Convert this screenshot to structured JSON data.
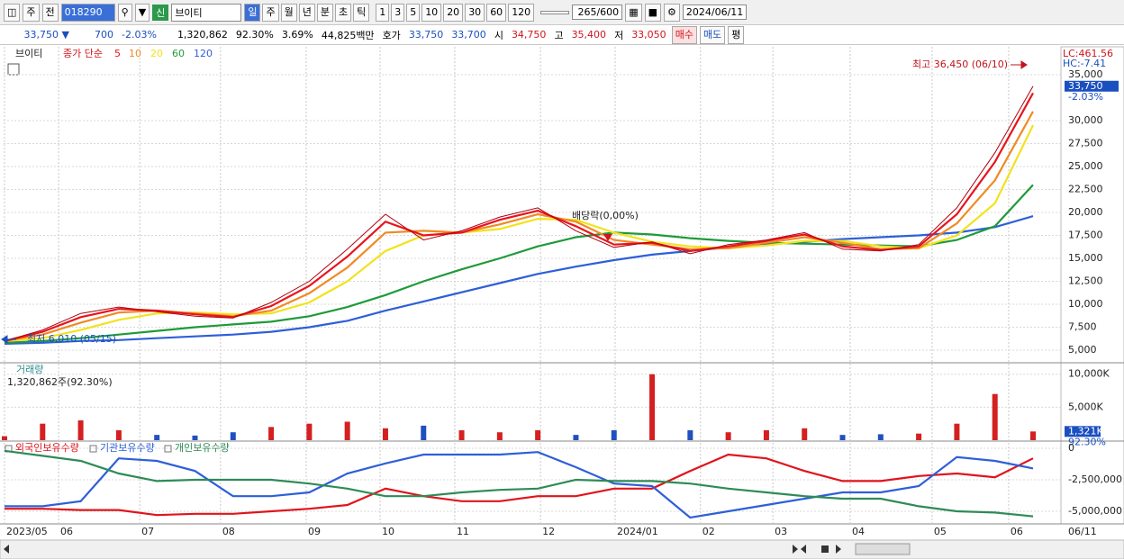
{
  "toolbar": {
    "market": "주",
    "prefix": "전",
    "code": "018290",
    "badge": "신",
    "name": "브이티",
    "periods": [
      "일",
      "주",
      "월",
      "년",
      "분",
      "초",
      "틱"
    ],
    "intervals": [
      "1",
      "3",
      "5",
      "10",
      "20",
      "30",
      "60",
      "120"
    ],
    "count": "265/600",
    "date": "2024/06/11"
  },
  "quote": {
    "price": "33,750 ▼",
    "change": "700",
    "change_pct": "-2.03%",
    "volume": "1,320,862",
    "volume_pct": "92.30%",
    "turnover": "3.69%",
    "amount": "44,825백만",
    "ask_label": "호가",
    "ask": "33,750",
    "bid": "33,700",
    "open_label": "시",
    "open": "34,750",
    "high_label": "고",
    "high": "35,400",
    "low_label": "저",
    "low": "33,050",
    "buy": "매수",
    "sell": "매도",
    "eval": "평"
  },
  "price_panel": {
    "name": "브이티",
    "legend_title": "종가 단순",
    "lc": "LC:461.56",
    "hc": "HC:-7.41",
    "last_label": "33,750",
    "last_value": 33750,
    "last_pct": "-2.03%",
    "high_label": "최고 36,450 (06/10)",
    "low_label": "최저 6,010 (05/15)",
    "dividend_label": "배당락(0,00%)",
    "ylim": [
      3725,
      38040
    ],
    "yticks": [
      {
        "value": 5000,
        "label": "5,000"
      },
      {
        "value": 7500,
        "label": "7,500"
      },
      {
        "value": 10000,
        "label": "10,000"
      },
      {
        "value": 12500,
        "label": "12,500"
      },
      {
        "value": 15000,
        "label": "15,000"
      },
      {
        "value": 17500,
        "label": "17,500"
      },
      {
        "value": 20000,
        "label": "20,000"
      },
      {
        "value": 22500,
        "label": "22,500"
      },
      {
        "value": 25000,
        "label": "25,000"
      },
      {
        "value": 27500,
        "label": "27,500"
      },
      {
        "value": 30000,
        "label": "30,000"
      },
      {
        "value": 35000,
        "label": "35,000"
      }
    ],
    "series": [
      {
        "name": "5",
        "color": "#e8141b",
        "values": [
          6000,
          7000,
          8600,
          9500,
          9300,
          8900,
          8600,
          9800,
          12000,
          15200,
          19000,
          17500,
          17800,
          19200,
          20200,
          18500,
          16500,
          16700,
          15800,
          16300,
          16900,
          17600,
          16300,
          15900,
          16300,
          19800,
          25500,
          33000
        ]
      },
      {
        "name": "10",
        "color": "#f08a24",
        "values": [
          6000,
          6700,
          8000,
          9100,
          9300,
          9000,
          8700,
          9300,
          11200,
          14000,
          17800,
          18000,
          17800,
          18700,
          19800,
          19000,
          17000,
          16500,
          16000,
          16100,
          16700,
          17300,
          16700,
          16000,
          16100,
          18800,
          23500,
          31000
        ]
      },
      {
        "name": "20",
        "color": "#f2e21c",
        "values": [
          6000,
          6300,
          7200,
          8300,
          9000,
          9100,
          8900,
          9000,
          10200,
          12500,
          15800,
          17500,
          17800,
          18200,
          19300,
          19200,
          17800,
          16800,
          16300,
          16100,
          16400,
          16900,
          16900,
          16300,
          16100,
          17500,
          21000,
          29500
        ]
      },
      {
        "name": "60",
        "color": "#1f9a3a",
        "values": [
          5800,
          6000,
          6300,
          6700,
          7100,
          7500,
          7800,
          8100,
          8700,
          9700,
          11000,
          12500,
          13800,
          15000,
          16300,
          17300,
          17800,
          17600,
          17200,
          16900,
          16700,
          16600,
          16500,
          16400,
          16300,
          17000,
          18500,
          23000
        ]
      },
      {
        "name": "120",
        "color": "#2e5fd8",
        "values": [
          5700,
          5800,
          6000,
          6100,
          6300,
          6500,
          6700,
          7000,
          7500,
          8200,
          9300,
          10300,
          11300,
          12300,
          13300,
          14100,
          14800,
          15400,
          15800,
          16200,
          16500,
          16800,
          17100,
          17300,
          17500,
          17800,
          18400,
          19600
        ]
      }
    ],
    "close": [
      6000,
      7200,
      9000,
      9700,
      9200,
      8700,
      8500,
      10200,
      12500,
      16000,
      19800,
      17000,
      18000,
      19500,
      20500,
      18000,
      16200,
      16800,
      15500,
      16500,
      17000,
      17800,
      16000,
      15800,
      16500,
      20500,
      26500,
      33750
    ]
  },
  "volume_panel": {
    "title": "거래량",
    "subtitle": "1,320,862주(92.30%)",
    "last_label": "1,321K",
    "last_value": 1321,
    "last_pct": "92.30%",
    "ylim": [
      0,
      11600
    ],
    "yticks": [
      {
        "value": 10000,
        "label": "10,000K"
      },
      {
        "value": 5000,
        "label": "5,000K"
      }
    ],
    "values": [
      600,
      2500,
      3000,
      1500,
      800,
      700,
      1200,
      2000,
      2500,
      2800,
      1800,
      2200,
      1500,
      1200,
      1500,
      800,
      1500,
      10000,
      1500,
      1200,
      1500,
      1800,
      800,
      900,
      1000,
      2500,
      7000,
      1321
    ]
  },
  "holdings_panel": {
    "ylim": [
      -6000000,
      500000
    ],
    "yticks": [
      0,
      {
        "value": -2500000,
        "label": "-2,500,000"
      },
      {
        "value": -5000000,
        "label": "-5,000,000"
      }
    ],
    "series": [
      {
        "name": "외국인보유수량",
        "color": "#e0141b",
        "values": [
          -4800000,
          -4800000,
          -4900000,
          -4900000,
          -5300000,
          -5200000,
          -5200000,
          -5000000,
          -4800000,
          -4500000,
          -3200000,
          -3800000,
          -4200000,
          -4200000,
          -3800000,
          -3800000,
          -3200000,
          -3200000,
          -1800000,
          -500000,
          -800000,
          -1800000,
          -2600000,
          -2600000,
          -2200000,
          -2000000,
          -2300000,
          -800000
        ]
      },
      {
        "name": "기관보유수량",
        "color": "#2e5fd8",
        "values": [
          -4600000,
          -4600000,
          -4200000,
          -800000,
          -1000000,
          -1800000,
          -3800000,
          -3800000,
          -3500000,
          -2000000,
          -1200000,
          -500000,
          -500000,
          -500000,
          -300000,
          -1500000,
          -2800000,
          -3000000,
          -5500000,
          -5000000,
          -4500000,
          -4000000,
          -3500000,
          -3500000,
          -3000000,
          -700000,
          -1000000,
          -1600000
        ]
      },
      {
        "name": "개인보유수량",
        "color": "#2e8b57",
        "values": [
          -200000,
          -600000,
          -1000000,
          -2000000,
          -2600000,
          -2500000,
          -2500000,
          -2500000,
          -2800000,
          -3200000,
          -3800000,
          -3800000,
          -3500000,
          -3300000,
          -3200000,
          -2500000,
          -2600000,
          -2600000,
          -2800000,
          -3200000,
          -3500000,
          -3800000,
          -4000000,
          -4000000,
          -4600000,
          -5000000,
          -5100000,
          -5400000
        ]
      }
    ]
  },
  "x_axis": {
    "ticks": [
      {
        "value": 0,
        "label": "2023/05"
      },
      {
        "value": 1.42,
        "label": "06"
      },
      {
        "value": 3.55,
        "label": "07"
      },
      {
        "value": 5.67,
        "label": "08"
      },
      {
        "value": 7.92,
        "label": "09"
      },
      {
        "value": 9.86,
        "label": "10"
      },
      {
        "value": 11.82,
        "label": "11"
      },
      {
        "value": 14.07,
        "label": "12"
      },
      {
        "value": 16.03,
        "label": "2024/01"
      },
      {
        "value": 18.27,
        "label": "02"
      },
      {
        "value": 20.17,
        "label": "03"
      },
      {
        "value": 22.2,
        "label": "04"
      },
      {
        "value": 24.35,
        "label": "05"
      },
      {
        "value": 26.36,
        "label": "06"
      }
    ],
    "end_label": "06/11"
  }
}
